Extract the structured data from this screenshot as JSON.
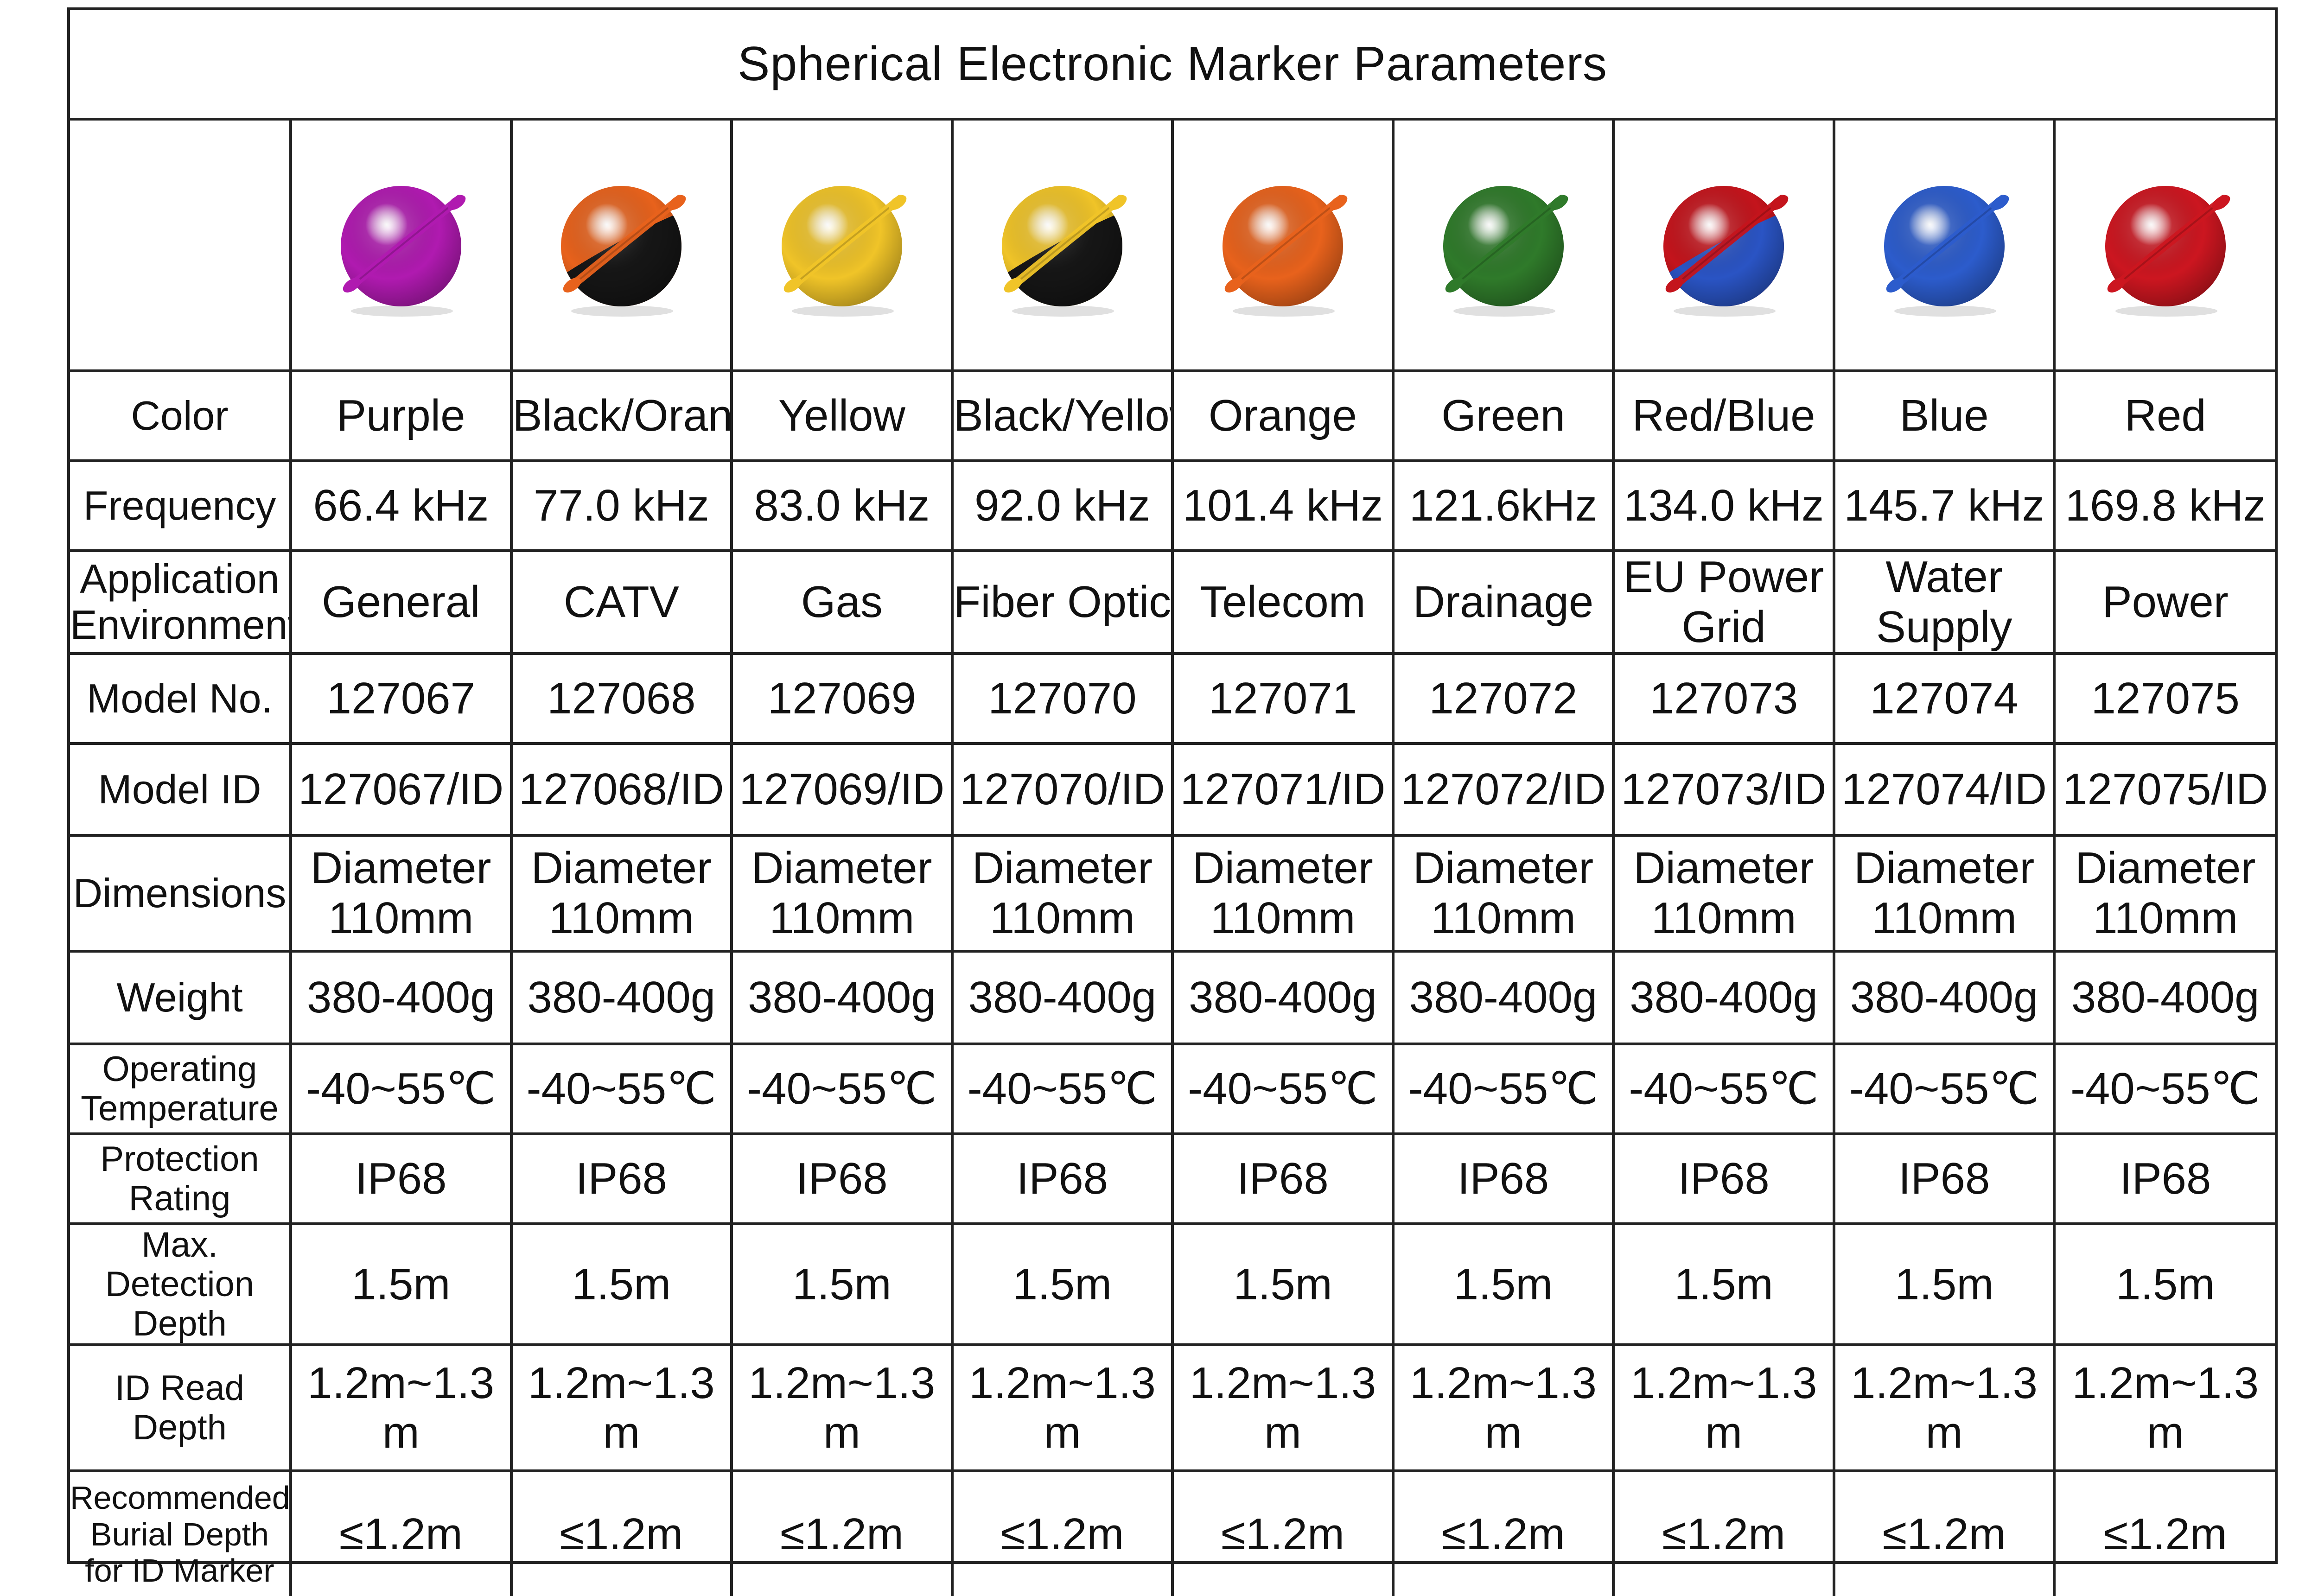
{
  "title": "Spherical Electronic Marker Parameters",
  "markers": [
    {
      "color": "Purple",
      "frequency": "66.4 kHz",
      "application": "General",
      "model_no": "127067",
      "model_id": "127067/ID",
      "dimensions": "Diameter 110mm",
      "weight": "380-400g",
      "operating_temp": "-40~55℃",
      "protection": "IP68",
      "max_depth": "1.5m",
      "id_read_depth": "1.2m~1.3 m",
      "burial_depth": "≤1.2m",
      "top_color": "#b01ab0",
      "bottom_color": "#b01ab0"
    },
    {
      "color": "Black/Orange",
      "frequency": "77.0 kHz",
      "application": "CATV",
      "model_no": "127068",
      "model_id": "127068/ID",
      "dimensions": "Diameter 110mm",
      "weight": "380-400g",
      "operating_temp": "-40~55℃",
      "protection": "IP68",
      "max_depth": "1.5m",
      "id_read_depth": "1.2m~1.3 m",
      "burial_depth": "≤1.2m",
      "top_color": "#e8621c",
      "bottom_color": "#151515"
    },
    {
      "color": "Yellow",
      "frequency": "83.0 kHz",
      "application": "Gas",
      "model_no": "127069",
      "model_id": "127069/ID",
      "dimensions": "Diameter 110mm",
      "weight": "380-400g",
      "operating_temp": "-40~55℃",
      "protection": "IP68",
      "max_depth": "1.5m",
      "id_read_depth": "1.2m~1.3 m",
      "burial_depth": "≤1.2m",
      "top_color": "#f0c428",
      "bottom_color": "#f0c428"
    },
    {
      "color": "Black/Yellow",
      "frequency": "92.0 kHz",
      "application": "Fiber Optic",
      "model_no": "127070",
      "model_id": "127070/ID",
      "dimensions": "Diameter 110mm",
      "weight": "380-400g",
      "operating_temp": "-40~55℃",
      "protection": "IP68",
      "max_depth": "1.5m",
      "id_read_depth": "1.2m~1.3 m",
      "burial_depth": "≤1.2m",
      "top_color": "#f0c428",
      "bottom_color": "#151515"
    },
    {
      "color": "Orange",
      "frequency": "101.4 kHz",
      "application": "Telecom",
      "model_no": "127071",
      "model_id": "127071/ID",
      "dimensions": "Diameter 110mm",
      "weight": "380-400g",
      "operating_temp": "-40~55℃",
      "protection": "IP68",
      "max_depth": "1.5m",
      "id_read_depth": "1.2m~1.3 m",
      "burial_depth": "≤1.2m",
      "top_color": "#e8621c",
      "bottom_color": "#e8621c"
    },
    {
      "color": "Green",
      "frequency": "121.6kHz",
      "application": "Drainage",
      "model_no": "127072",
      "model_id": "127072/ID",
      "dimensions": "Diameter 110mm",
      "weight": "380-400g",
      "operating_temp": "-40~55℃",
      "protection": "IP68",
      "max_depth": "1.5m",
      "id_read_depth": "1.2m~1.3 m",
      "burial_depth": "≤1.2m",
      "top_color": "#2f7a2a",
      "bottom_color": "#2f7a2a"
    },
    {
      "color": "Red/Blue",
      "frequency": "134.0 kHz",
      "application": "EU Power Grid",
      "model_no": "127073",
      "model_id": "127073/ID",
      "dimensions": "Diameter 110mm",
      "weight": "380-400g",
      "operating_temp": "-40~55℃",
      "protection": "IP68",
      "max_depth": "1.5m",
      "id_read_depth": "1.2m~1.3 m",
      "burial_depth": "≤1.2m",
      "top_color": "#c4141c",
      "bottom_color": "#2a54c4"
    },
    {
      "color": "Blue",
      "frequency": "145.7 kHz",
      "application": "Water Supply",
      "model_no": "127074",
      "model_id": "127074/ID",
      "dimensions": "Diameter 110mm",
      "weight": "380-400g",
      "operating_temp": "-40~55℃",
      "protection": "IP68",
      "max_depth": "1.5m",
      "id_read_depth": "1.2m~1.3 m",
      "burial_depth": "≤1.2m",
      "top_color": "#2c5ccc",
      "bottom_color": "#2c5ccc"
    },
    {
      "color": "Red",
      "frequency": "169.8 kHz",
      "application": "Power",
      "model_no": "127075",
      "model_id": "127075/ID",
      "dimensions": "Diameter 110mm",
      "weight": "380-400g",
      "operating_temp": "-40~55℃",
      "protection": "IP68",
      "max_depth": "1.5m",
      "id_read_depth": "1.2m~1.3 m",
      "burial_depth": "≤1.2m",
      "top_color": "#cc1620",
      "bottom_color": "#cc1620"
    }
  ],
  "row_labels": {
    "color": "Color",
    "frequency": "Frequency",
    "application": "Application Environment",
    "model_no": "Model No.",
    "model_id": "Model ID",
    "dimensions": "Dimensions",
    "weight": "Weight",
    "operating_temp": "Operating Temperature",
    "protection": "Protection Rating",
    "max_depth": "Max. Detection Depth",
    "id_read_depth": "ID Read Depth",
    "burial_depth": "Recommended Burial Depth for ID Marker"
  }
}
